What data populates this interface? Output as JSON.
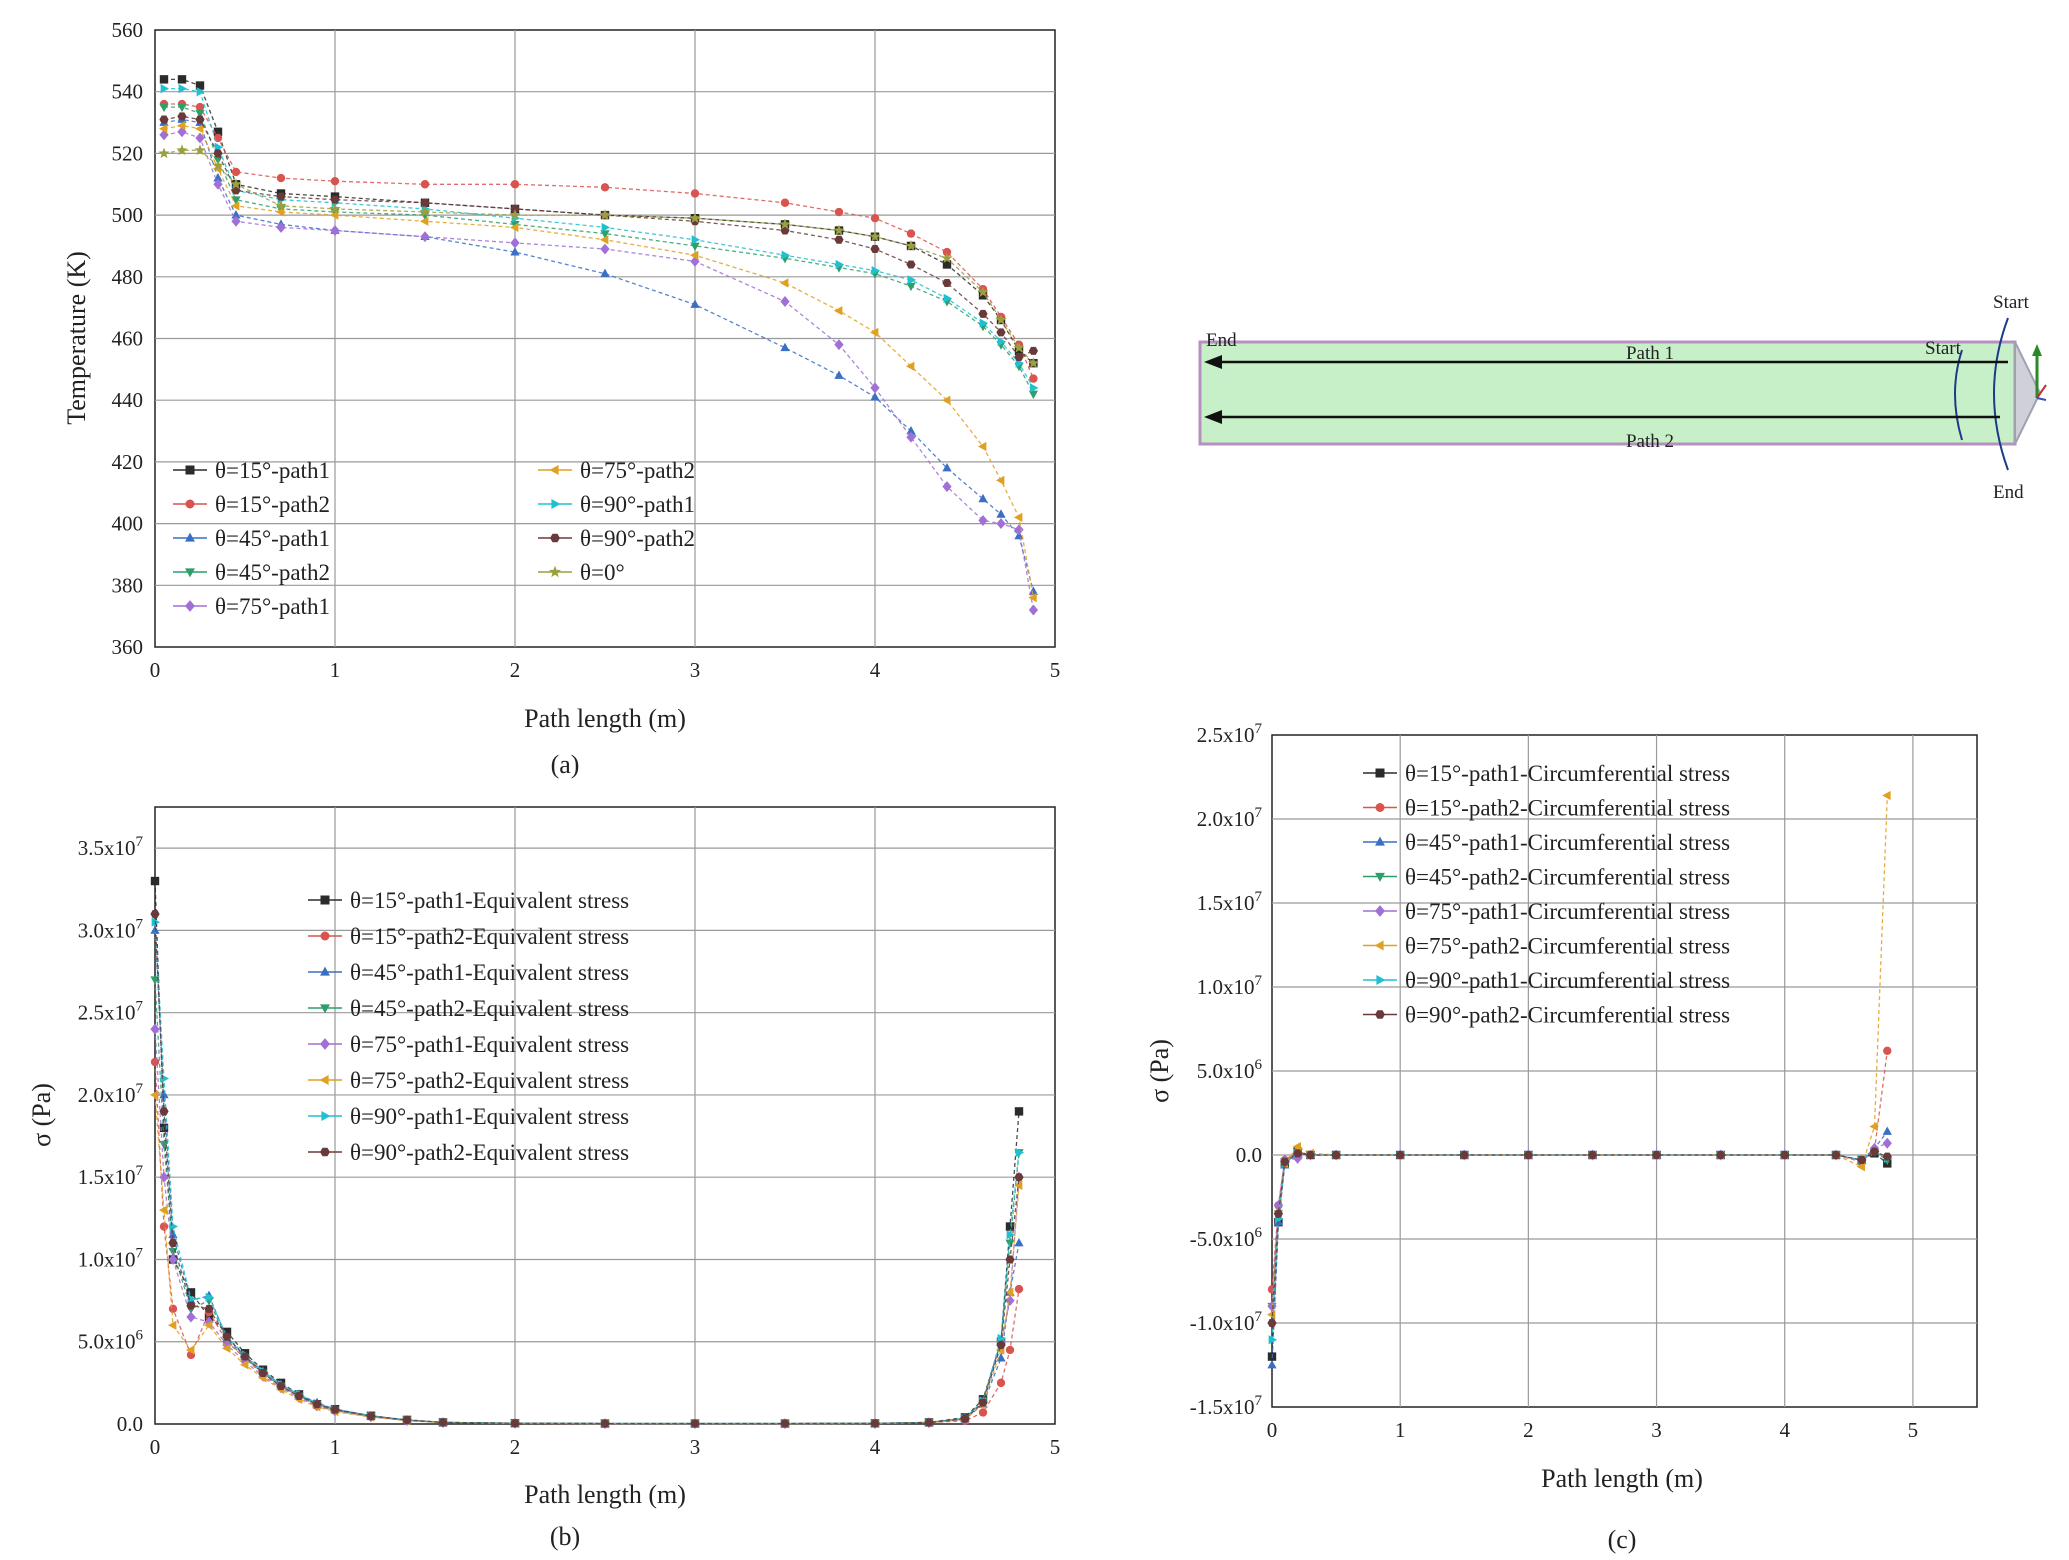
{
  "figure": {
    "panels": [
      {
        "id": "a",
        "caption": "(a)"
      },
      {
        "id": "b",
        "caption": "(b)"
      },
      {
        "id": "c",
        "caption": "(c)"
      }
    ],
    "diagram": {
      "path1_label": "Path 1",
      "path2_label": "Path 2",
      "end_left": "End",
      "start_inner": "Start",
      "start_top": "Start",
      "end_bottom": "End",
      "pipe_fill": "#c8f0c8",
      "pipe_edge": "#b590c0"
    }
  },
  "chart_data": [
    {
      "panel": "a",
      "type": "line",
      "xlabel": "Path length (m)",
      "ylabel": "Temperature (K)",
      "xlim": [
        0,
        5
      ],
      "ylim": [
        360,
        560
      ],
      "xticks": [
        "0",
        "1",
        "2",
        "3",
        "4",
        "5"
      ],
      "yticks": [
        "360",
        "380",
        "400",
        "420",
        "440",
        "460",
        "480",
        "500",
        "520",
        "540",
        "560"
      ],
      "grid": true,
      "legend": "bottom-left, two columns",
      "x": [
        0.05,
        0.15,
        0.25,
        0.35,
        0.45,
        0.7,
        1.0,
        1.5,
        2.0,
        2.5,
        3.0,
        3.5,
        3.8,
        4.0,
        4.2,
        4.4,
        4.6,
        4.7,
        4.8,
        4.88
      ],
      "series": [
        {
          "name": "θ=15°-path1",
          "marker": "square",
          "color": "#2b2b2b",
          "values": [
            544,
            544,
            542,
            527,
            510,
            507,
            506,
            504,
            502,
            500,
            499,
            497,
            495,
            493,
            490,
            484,
            474,
            466,
            456,
            452
          ]
        },
        {
          "name": "θ=15°-path2",
          "marker": "circle",
          "color": "#d9534f",
          "values": [
            536,
            536,
            535,
            525,
            514,
            512,
            511,
            510,
            510,
            509,
            507,
            504,
            501,
            499,
            494,
            488,
            476,
            467,
            458,
            447
          ]
        },
        {
          "name": "θ=45°-path1",
          "marker": "triangle-up",
          "color": "#3a6fc4",
          "values": [
            530,
            531,
            530,
            512,
            500,
            497,
            495,
            493,
            488,
            481,
            471,
            457,
            448,
            441,
            430,
            418,
            408,
            403,
            396,
            378
          ]
        },
        {
          "name": "θ=45°-path2",
          "marker": "triangle-down",
          "color": "#2e9e6a",
          "values": [
            535,
            535,
            533,
            518,
            505,
            502,
            501,
            500,
            497,
            494,
            490,
            486,
            483,
            481,
            477,
            472,
            464,
            458,
            451,
            442
          ]
        },
        {
          "name": "θ=75°-path1",
          "marker": "diamond",
          "color": "#a070d6",
          "values": [
            526,
            527,
            525,
            510,
            498,
            496,
            495,
            493,
            491,
            489,
            485,
            472,
            458,
            444,
            428,
            412,
            401,
            400,
            398,
            372
          ]
        },
        {
          "name": "θ=75°-path2",
          "marker": "triangle-left",
          "color": "#e0a020",
          "values": [
            528,
            529,
            528,
            515,
            503,
            501,
            500,
            498,
            496,
            492,
            487,
            478,
            469,
            462,
            451,
            440,
            425,
            414,
            402,
            376
          ]
        },
        {
          "name": "θ=90°-path1",
          "marker": "triangle-right",
          "color": "#20c0d0",
          "values": [
            541,
            541,
            540,
            522,
            508,
            505,
            504,
            502,
            499,
            496,
            492,
            487,
            484,
            482,
            479,
            473,
            465,
            459,
            452,
            444
          ]
        },
        {
          "name": "θ=90°-path2",
          "marker": "hexagon",
          "color": "#6a3a3a",
          "values": [
            531,
            532,
            531,
            520,
            508,
            506,
            505,
            504,
            502,
            500,
            498,
            495,
            492,
            489,
            484,
            478,
            468,
            462,
            454,
            456
          ]
        },
        {
          "name": "θ=0°",
          "marker": "star",
          "color": "#9aa040",
          "values": [
            520,
            521,
            521,
            516,
            510,
            503,
            502,
            501,
            500,
            500,
            499,
            497,
            495,
            493,
            490,
            486,
            475,
            466,
            457,
            452
          ]
        }
      ]
    },
    {
      "panel": "b",
      "type": "line",
      "xlabel": "Path length (m)",
      "ylabel": "σ (Pa)",
      "xlim": [
        0,
        5
      ],
      "ylim": [
        0,
        37500000
      ],
      "xticks": [
        "0",
        "1",
        "2",
        "3",
        "4",
        "5"
      ],
      "yticks": [
        {
          "m": "0.0",
          "e": ""
        },
        {
          "m": "5.0x10",
          "e": "6"
        },
        {
          "m": "1.0x10",
          "e": "7"
        },
        {
          "m": "1.5x10",
          "e": "7"
        },
        {
          "m": "2.0x10",
          "e": "7"
        },
        {
          "m": "2.5x10",
          "e": "7"
        },
        {
          "m": "3.0x10",
          "e": "7"
        },
        {
          "m": "3.5x10",
          "e": "7"
        }
      ],
      "ytick_values": [
        0,
        5000000,
        10000000,
        15000000,
        20000000,
        25000000,
        30000000,
        35000000
      ],
      "grid": true,
      "legend": "upper-center",
      "x": [
        0.0,
        0.05,
        0.1,
        0.2,
        0.3,
        0.4,
        0.5,
        0.6,
        0.7,
        0.8,
        0.9,
        1.0,
        1.2,
        1.4,
        1.6,
        2.0,
        2.5,
        3.0,
        3.5,
        4.0,
        4.3,
        4.5,
        4.6,
        4.7,
        4.75,
        4.8
      ],
      "series": [
        {
          "name": "θ=15°-path1-Equivalent stress",
          "marker": "square",
          "color": "#2b2b2b",
          "values": [
            33000000,
            18000000,
            10000000,
            8000000,
            6500000,
            5600000,
            4300000,
            3300000,
            2500000,
            1800000,
            1200000,
            900000,
            500000,
            250000,
            100000,
            50000,
            30000,
            30000,
            30000,
            40000,
            100000,
            400000,
            1500000,
            5000000,
            12000000,
            19000000
          ]
        },
        {
          "name": "θ=15°-path2-Equivalent stress",
          "marker": "circle",
          "color": "#d9534f",
          "values": [
            22000000,
            12000000,
            7000000,
            4200000,
            6800000,
            5000000,
            4000000,
            3000000,
            2300000,
            1700000,
            1100000,
            800000,
            450000,
            220000,
            90000,
            40000,
            25000,
            25000,
            25000,
            30000,
            80000,
            200000,
            700000,
            2500000,
            4500000,
            8200000
          ]
        },
        {
          "name": "θ=45°-path1-Equivalent stress",
          "marker": "triangle-up",
          "color": "#3a6fc4",
          "values": [
            30000000,
            20000000,
            11500000,
            7500000,
            7800000,
            5200000,
            4100000,
            3200000,
            2400000,
            1800000,
            1300000,
            900000,
            500000,
            250000,
            100000,
            50000,
            30000,
            30000,
            30000,
            40000,
            100000,
            300000,
            1200000,
            4000000,
            8000000,
            11000000
          ]
        },
        {
          "name": "θ=45°-path2-Equivalent stress",
          "marker": "triangle-down",
          "color": "#2e9e6a",
          "values": [
            27000000,
            17000000,
            10500000,
            7000000,
            7500000,
            5100000,
            4000000,
            3100000,
            2300000,
            1700000,
            1200000,
            850000,
            470000,
            230000,
            95000,
            45000,
            28000,
            28000,
            28000,
            35000,
            90000,
            350000,
            1400000,
            5000000,
            11000000,
            16500000
          ]
        },
        {
          "name": "θ=75°-path1-Equivalent stress",
          "marker": "diamond",
          "color": "#a070d6",
          "values": [
            24000000,
            15000000,
            10000000,
            6500000,
            6200000,
            4800000,
            3800000,
            2900000,
            2200000,
            1600000,
            1100000,
            800000,
            440000,
            210000,
            85000,
            40000,
            25000,
            25000,
            25000,
            30000,
            80000,
            300000,
            1300000,
            5000000,
            7500000,
            15000000
          ]
        },
        {
          "name": "θ=75°-path2-Equivalent stress",
          "marker": "triangle-left",
          "color": "#e0a020",
          "values": [
            20000000,
            13000000,
            6000000,
            4500000,
            6000000,
            4600000,
            3600000,
            2800000,
            2100000,
            1500000,
            1050000,
            750000,
            420000,
            200000,
            80000,
            38000,
            24000,
            24000,
            24000,
            28000,
            75000,
            280000,
            1200000,
            4500000,
            8000000,
            14500000
          ]
        },
        {
          "name": "θ=90°-path1-Equivalent stress",
          "marker": "triangle-right",
          "color": "#20c0d0",
          "values": [
            30500000,
            21000000,
            12000000,
            7600000,
            7700000,
            5300000,
            4200000,
            3200000,
            2400000,
            1800000,
            1250000,
            900000,
            500000,
            240000,
            100000,
            48000,
            30000,
            30000,
            30000,
            38000,
            95000,
            330000,
            1400000,
            5200000,
            11500000,
            16500000
          ]
        },
        {
          "name": "θ=90°-path2-Equivalent stress",
          "marker": "hexagon",
          "color": "#6a3a3a",
          "values": [
            31000000,
            19000000,
            11000000,
            7200000,
            7000000,
            5300000,
            4100000,
            3100000,
            2300000,
            1700000,
            1200000,
            870000,
            480000,
            240000,
            95000,
            47000,
            29000,
            29000,
            29000,
            36000,
            90000,
            320000,
            1300000,
            4800000,
            10000000,
            15000000
          ]
        }
      ]
    },
    {
      "panel": "c",
      "type": "line",
      "xlabel": "Path length (m)",
      "ylabel": "σ (Pa)",
      "xlim": [
        0,
        5.5
      ],
      "ylim": [
        -15000000,
        25000000
      ],
      "xticks": [
        "0",
        "1",
        "2",
        "3",
        "4",
        "5"
      ],
      "yticks": [
        {
          "m": "-1.5x10",
          "e": "7"
        },
        {
          "m": "-1.0x10",
          "e": "7"
        },
        {
          "m": "-5.0x10",
          "e": "6"
        },
        {
          "m": "0.0",
          "e": ""
        },
        {
          "m": "5.0x10",
          "e": "6"
        },
        {
          "m": "1.0x10",
          "e": "7"
        },
        {
          "m": "1.5x10",
          "e": "7"
        },
        {
          "m": "2.0x10",
          "e": "7"
        },
        {
          "m": "2.5x10",
          "e": "7"
        }
      ],
      "ytick_values": [
        -15000000,
        -10000000,
        -5000000,
        0,
        5000000,
        10000000,
        15000000,
        20000000,
        25000000
      ],
      "grid": true,
      "legend": "upper-center",
      "x": [
        0.0,
        0.05,
        0.1,
        0.2,
        0.3,
        0.5,
        1.0,
        1.5,
        2.0,
        2.5,
        3.0,
        3.5,
        4.0,
        4.4,
        4.6,
        4.7,
        4.8
      ],
      "series": [
        {
          "name": "θ=15°-path1-Circumferential stress",
          "marker": "square",
          "color": "#2b2b2b",
          "values": [
            -12000000,
            -4000000,
            -500000,
            200000,
            0,
            0,
            0,
            0,
            0,
            0,
            0,
            0,
            0,
            0,
            -300000,
            100000,
            -500000
          ]
        },
        {
          "name": "θ=15°-path2-Circumferential stress",
          "marker": "circle",
          "color": "#d9534f",
          "values": [
            -8000000,
            -3000000,
            -300000,
            200000,
            0,
            0,
            0,
            0,
            0,
            0,
            0,
            0,
            0,
            0,
            -400000,
            300000,
            6200000
          ]
        },
        {
          "name": "θ=45°-path1-Circumferential stress",
          "marker": "triangle-up",
          "color": "#3a6fc4",
          "values": [
            -12500000,
            -4000000,
            -600000,
            100000,
            0,
            0,
            0,
            0,
            0,
            0,
            0,
            0,
            0,
            0,
            -300000,
            400000,
            1400000
          ]
        },
        {
          "name": "θ=45°-path2-Circumferential stress",
          "marker": "triangle-down",
          "color": "#2e9e6a",
          "values": [
            -9000000,
            -3500000,
            -400000,
            150000,
            0,
            0,
            0,
            0,
            0,
            0,
            0,
            0,
            0,
            0,
            -300000,
            200000,
            -300000
          ]
        },
        {
          "name": "θ=75°-path1-Circumferential stress",
          "marker": "diamond",
          "color": "#a070d6",
          "values": [
            -9000000,
            -3000000,
            -300000,
            -200000,
            0,
            0,
            0,
            0,
            0,
            0,
            0,
            0,
            0,
            0,
            -300000,
            400000,
            700000
          ]
        },
        {
          "name": "θ=75°-path2-Circumferential stress",
          "marker": "triangle-left",
          "color": "#e0a020",
          "values": [
            -9500000,
            -3500000,
            -500000,
            500000,
            100000,
            0,
            0,
            0,
            0,
            0,
            0,
            0,
            0,
            0,
            -700000,
            1700000,
            21400000
          ]
        },
        {
          "name": "θ=90°-path1-Circumferential stress",
          "marker": "triangle-right",
          "color": "#20c0d0",
          "values": [
            -11000000,
            -3800000,
            -500000,
            100000,
            0,
            0,
            0,
            0,
            0,
            0,
            0,
            0,
            0,
            0,
            -300000,
            200000,
            -200000
          ]
        },
        {
          "name": "θ=90°-path2-Circumferential stress",
          "marker": "hexagon",
          "color": "#6a3a3a",
          "values": [
            -10000000,
            -3500000,
            -400000,
            100000,
            0,
            0,
            0,
            0,
            0,
            0,
            0,
            0,
            0,
            0,
            -300000,
            200000,
            -100000
          ]
        }
      ]
    }
  ]
}
